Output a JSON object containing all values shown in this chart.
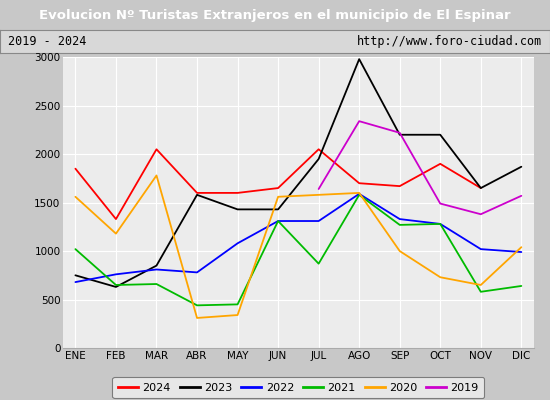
{
  "title": "Evolucion Nº Turistas Extranjeros en el municipio de El Espinar",
  "subtitle_left": "2019 - 2024",
  "subtitle_right": "http://www.foro-ciudad.com",
  "months": [
    "ENE",
    "FEB",
    "MAR",
    "ABR",
    "MAY",
    "JUN",
    "JUL",
    "AGO",
    "SEP",
    "OCT",
    "NOV",
    "DIC"
  ],
  "series": {
    "2024": [
      1850,
      1330,
      2050,
      1600,
      1600,
      1650,
      2050,
      1700,
      1670,
      1900,
      1650,
      null
    ],
    "2023": [
      750,
      630,
      850,
      1580,
      1430,
      1430,
      1950,
      2980,
      2200,
      2200,
      1650,
      1870
    ],
    "2022": [
      680,
      760,
      810,
      780,
      1080,
      1310,
      1310,
      1590,
      1330,
      1280,
      1020,
      990
    ],
    "2021": [
      1020,
      650,
      660,
      440,
      450,
      1310,
      870,
      1580,
      1270,
      1280,
      580,
      640
    ],
    "2020": [
      1560,
      1180,
      1780,
      310,
      340,
      1560,
      1580,
      1600,
      1000,
      730,
      650,
      1040
    ],
    "2019": [
      null,
      null,
      null,
      null,
      null,
      null,
      1640,
      2340,
      2220,
      1490,
      1380,
      1570
    ]
  },
  "colors": {
    "2024": "#ff0000",
    "2023": "#000000",
    "2022": "#0000ff",
    "2021": "#00bb00",
    "2020": "#ffa500",
    "2019": "#cc00cc"
  },
  "ylim": [
    0,
    3000
  ],
  "yticks": [
    0,
    500,
    1000,
    1500,
    2000,
    2500,
    3000
  ],
  "bg_color": "#c8c8c8",
  "plot_bg_color": "#ececec",
  "title_bg_color": "#5b8dd9",
  "title_text_color": "#ffffff",
  "header_bg_color": "#d8d8d8",
  "legend_bg_color": "#f0f0f0"
}
